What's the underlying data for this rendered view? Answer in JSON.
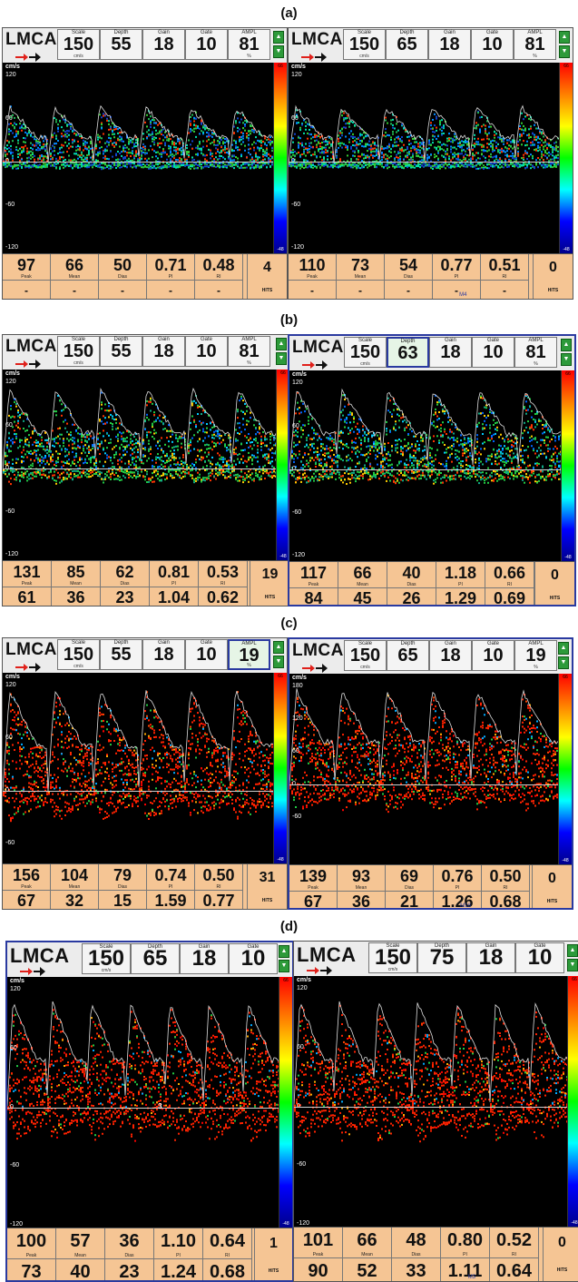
{
  "sections": [
    {
      "label": "(a)",
      "panels": [
        {
          "vessel": "LMCA",
          "params": [
            {
              "name": "Scale",
              "value": "150",
              "unit": "cm/s"
            },
            {
              "name": "Depth",
              "value": "55",
              "unit": ""
            },
            {
              "name": "Gain",
              "value": "18",
              "unit": ""
            },
            {
              "name": "Gate",
              "value": "10",
              "unit": ""
            },
            {
              "name": "AMPL",
              "value": "81",
              "unit": "%"
            }
          ],
          "axis": {
            "unit": "cm/s",
            "ticks": [
              "120",
              "60",
              "0",
              "-60",
              "-120"
            ]
          },
          "stats_row1": [
            {
              "value": "97",
              "label": "Peak"
            },
            {
              "value": "66",
              "label": "Mean"
            },
            {
              "value": "50",
              "label": "Dias"
            },
            {
              "value": "0.71",
              "label": "PI"
            },
            {
              "value": "0.48",
              "label": "RI"
            }
          ],
          "stats_row2": [
            "-",
            "-",
            "-",
            "-",
            "-"
          ],
          "hits": "4",
          "hits_label": "HITS",
          "marker": ""
        },
        {
          "vessel": "LMCA",
          "params": [
            {
              "name": "Scale",
              "value": "150",
              "unit": "cm/s"
            },
            {
              "name": "Depth",
              "value": "65",
              "unit": ""
            },
            {
              "name": "Gain",
              "value": "18",
              "unit": ""
            },
            {
              "name": "Gate",
              "value": "10",
              "unit": ""
            },
            {
              "name": "AMPL",
              "value": "81",
              "unit": "%"
            }
          ],
          "axis": {
            "unit": "cm/s",
            "ticks": [
              "120",
              "60",
              "0",
              "-60",
              "-120"
            ]
          },
          "stats_row1": [
            {
              "value": "110",
              "label": "Peak"
            },
            {
              "value": "73",
              "label": "Mean"
            },
            {
              "value": "54",
              "label": "Dias"
            },
            {
              "value": "0.77",
              "label": "PI"
            },
            {
              "value": "0.51",
              "label": "RI"
            }
          ],
          "stats_row2": [
            "-",
            "-",
            "-",
            "-",
            "-"
          ],
          "hits": "0",
          "hits_label": "HITS",
          "marker": "M4"
        }
      ]
    },
    {
      "label": "(b)",
      "panels": [
        {
          "vessel": "LMCA",
          "params": [
            {
              "name": "Scale",
              "value": "150",
              "unit": "cm/s"
            },
            {
              "name": "Depth",
              "value": "55",
              "unit": ""
            },
            {
              "name": "Gain",
              "value": "18",
              "unit": ""
            },
            {
              "name": "Gate",
              "value": "10",
              "unit": ""
            },
            {
              "name": "AMPL",
              "value": "81",
              "unit": "%"
            }
          ],
          "axis": {
            "unit": "cm/s",
            "ticks": [
              "120",
              "60",
              "0",
              "-60",
              "-120"
            ]
          },
          "stats_row1": [
            {
              "value": "131",
              "label": "Peak"
            },
            {
              "value": "85",
              "label": "Mean"
            },
            {
              "value": "62",
              "label": "Dias"
            },
            {
              "value": "0.81",
              "label": "PI"
            },
            {
              "value": "0.53",
              "label": "RI"
            }
          ],
          "stats_row2": [
            "61",
            "36",
            "23",
            "1.04",
            "0.62"
          ],
          "hits": "19",
          "hits_label": "HITS",
          "marker": ""
        },
        {
          "vessel": "LMCA",
          "params": [
            {
              "name": "Scale",
              "value": "150",
              "unit": "cm/s"
            },
            {
              "name": "Depth",
              "value": "63",
              "unit": ""
            },
            {
              "name": "Gain",
              "value": "18",
              "unit": ""
            },
            {
              "name": "Gate",
              "value": "10",
              "unit": ""
            },
            {
              "name": "AMPL",
              "value": "81",
              "unit": "%"
            }
          ],
          "axis": {
            "unit": "cm/s",
            "ticks": [
              "120",
              "60",
              "0",
              "-60",
              "-120"
            ]
          },
          "stats_row1": [
            {
              "value": "117",
              "label": "Peak"
            },
            {
              "value": "66",
              "label": "Mean"
            },
            {
              "value": "40",
              "label": "Dias"
            },
            {
              "value": "1.18",
              "label": "PI"
            },
            {
              "value": "0.66",
              "label": "RI"
            }
          ],
          "stats_row2": [
            "84",
            "45",
            "26",
            "1.29",
            "0.69"
          ],
          "hits": "0",
          "hits_label": "HITS",
          "marker": ""
        }
      ]
    },
    {
      "label": "(c)",
      "panels": [
        {
          "vessel": "LMCA",
          "params": [
            {
              "name": "Scale",
              "value": "150",
              "unit": "cm/s"
            },
            {
              "name": "Depth",
              "value": "55",
              "unit": ""
            },
            {
              "name": "Gain",
              "value": "18",
              "unit": ""
            },
            {
              "name": "Gate",
              "value": "10",
              "unit": ""
            },
            {
              "name": "AMPL",
              "value": "19",
              "unit": "%"
            }
          ],
          "axis": {
            "unit": "cm/s",
            "ticks": [
              "120",
              "60",
              "0",
              "-60"
            ]
          },
          "stats_row1": [
            {
              "value": "156",
              "label": "Peak"
            },
            {
              "value": "104",
              "label": "Mean"
            },
            {
              "value": "79",
              "label": "Dias"
            },
            {
              "value": "0.74",
              "label": "PI"
            },
            {
              "value": "0.50",
              "label": "RI"
            }
          ],
          "stats_row2": [
            "67",
            "32",
            "15",
            "1.59",
            "0.77"
          ],
          "hits": "31",
          "hits_label": "HITS",
          "marker": ""
        },
        {
          "vessel": "LMCA",
          "params": [
            {
              "name": "Scale",
              "value": "150",
              "unit": "cm/s"
            },
            {
              "name": "Depth",
              "value": "65",
              "unit": ""
            },
            {
              "name": "Gain",
              "value": "18",
              "unit": ""
            },
            {
              "name": "Gate",
              "value": "10",
              "unit": ""
            },
            {
              "name": "AMPL",
              "value": "19",
              "unit": "%"
            }
          ],
          "axis": {
            "unit": "cm/s",
            "ticks": [
              "180",
              "120",
              "60",
              "0",
              "-60"
            ]
          },
          "stats_row1": [
            {
              "value": "139",
              "label": "Peak"
            },
            {
              "value": "93",
              "label": "Mean"
            },
            {
              "value": "69",
              "label": "Dias"
            },
            {
              "value": "0.76",
              "label": "PI"
            },
            {
              "value": "0.50",
              "label": "RI"
            }
          ],
          "stats_row2": [
            "67",
            "36",
            "21",
            "1.26",
            "0.68"
          ],
          "hits": "0",
          "hits_label": "HITS",
          "marker": "M18"
        }
      ]
    },
    {
      "label": "(d)",
      "panels": [
        {
          "vessel": "LMCA",
          "params": [
            {
              "name": "Scale",
              "value": "150",
              "unit": "cm/s"
            },
            {
              "name": "Depth",
              "value": "65",
              "unit": ""
            },
            {
              "name": "Gain",
              "value": "18",
              "unit": ""
            },
            {
              "name": "Gate",
              "value": "10",
              "unit": ""
            }
          ],
          "axis": {
            "unit": "cm/s",
            "ticks": [
              "120",
              "60",
              "0",
              "-60",
              "-120"
            ]
          },
          "stats_row1": [
            {
              "value": "100",
              "label": "Peak"
            },
            {
              "value": "57",
              "label": "Mean"
            },
            {
              "value": "36",
              "label": "Dias"
            },
            {
              "value": "1.10",
              "label": "PI"
            },
            {
              "value": "0.64",
              "label": "RI"
            }
          ],
          "stats_row2": [
            "73",
            "40",
            "23",
            "1.24",
            "0.68"
          ],
          "hits": "1",
          "hits_label": "HITS",
          "marker": "",
          "gate_mark": "3"
        },
        {
          "vessel": "LMCA",
          "params": [
            {
              "name": "Scale",
              "value": "150",
              "unit": "cm/s"
            },
            {
              "name": "Depth",
              "value": "75",
              "unit": ""
            },
            {
              "name": "Gain",
              "value": "18",
              "unit": ""
            },
            {
              "name": "Gate",
              "value": "10",
              "unit": ""
            }
          ],
          "axis": {
            "unit": "cm/s",
            "ticks": [
              "120",
              "60",
              "0",
              "-60",
              "-120"
            ]
          },
          "stats_row1": [
            {
              "value": "101",
              "label": "Peak"
            },
            {
              "value": "66",
              "label": "Mean"
            },
            {
              "value": "48",
              "label": "Dias"
            },
            {
              "value": "0.80",
              "label": "PI"
            },
            {
              "value": "0.52",
              "label": "RI"
            }
          ],
          "stats_row2": [
            "90",
            "52",
            "33",
            "1.11",
            "0.64"
          ],
          "hits": "0",
          "hits_label": "HITS",
          "marker": "M3"
        }
      ]
    }
  ],
  "colorbar": {
    "top": "66",
    "bottom": "-48"
  },
  "colors": {
    "stats_bg": "#f5c594",
    "selected_border": "#2a3aa0",
    "spectrum_bg": "#000000"
  }
}
